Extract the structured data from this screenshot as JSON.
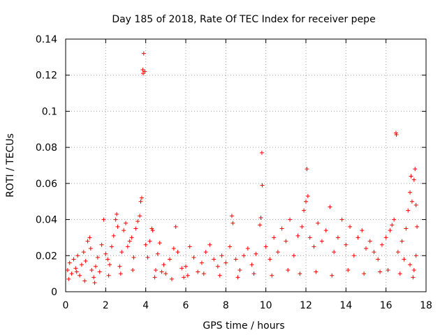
{
  "chart_data": {
    "type": "scatter",
    "title": "Day 185 of 2018, Rate Of TEC Index for receiver pepe",
    "xlabel": "GPS time / hours",
    "ylabel": "ROTI / TECUs",
    "xlim": [
      0,
      18
    ],
    "ylim": [
      0,
      0.14
    ],
    "xticks": [
      "0",
      "2",
      "4",
      "6",
      "8",
      "10",
      "12",
      "14",
      "16",
      "18"
    ],
    "yticks": [
      "0",
      "0.02",
      "0.04",
      "0.06",
      "0.08",
      "0.1",
      "0.12",
      "0.14"
    ],
    "grid": true,
    "marker": "+",
    "color": "#ff0000",
    "series": [
      {
        "name": "ROTI",
        "points": [
          [
            0.1,
            0.012
          ],
          [
            0.2,
            0.016
          ],
          [
            0.3,
            0.01
          ],
          [
            0.4,
            0.018
          ],
          [
            0.5,
            0.013
          ],
          [
            0.6,
            0.02
          ],
          [
            0.7,
            0.009
          ],
          [
            0.8,
            0.015
          ],
          [
            0.9,
            0.022
          ],
          [
            1.0,
            0.017
          ],
          [
            1.1,
            0.028
          ],
          [
            1.2,
            0.03
          ],
          [
            1.25,
            0.024
          ],
          [
            1.3,
            0.012
          ],
          [
            1.4,
            0.008
          ],
          [
            1.5,
            0.014
          ],
          [
            1.6,
            0.019
          ],
          [
            1.7,
            0.011
          ],
          [
            1.8,
            0.026
          ],
          [
            1.9,
            0.04
          ],
          [
            2.0,
            0.021
          ],
          [
            2.1,
            0.018
          ],
          [
            2.2,
            0.015
          ],
          [
            2.3,
            0.025
          ],
          [
            2.4,
            0.031
          ],
          [
            2.5,
            0.04
          ],
          [
            2.55,
            0.043
          ],
          [
            2.6,
            0.036
          ],
          [
            2.7,
            0.014
          ],
          [
            2.8,
            0.022
          ],
          [
            2.9,
            0.034
          ],
          [
            3.0,
            0.038
          ],
          [
            3.1,
            0.025
          ],
          [
            3.2,
            0.028
          ],
          [
            3.3,
            0.03
          ],
          [
            3.4,
            0.019
          ],
          [
            3.5,
            0.035
          ],
          [
            3.6,
            0.039
          ],
          [
            3.7,
            0.042
          ],
          [
            3.75,
            0.05
          ],
          [
            3.8,
            0.052
          ],
          [
            3.85,
            0.123
          ],
          [
            3.87,
            0.121
          ],
          [
            3.9,
            0.132
          ],
          [
            3.95,
            0.122
          ],
          [
            4.0,
            0.026
          ],
          [
            4.1,
            0.019
          ],
          [
            4.2,
            0.028
          ],
          [
            4.3,
            0.035
          ],
          [
            4.35,
            0.034
          ],
          [
            4.5,
            0.012
          ],
          [
            4.6,
            0.021
          ],
          [
            4.7,
            0.027
          ],
          [
            4.8,
            0.011
          ],
          [
            4.9,
            0.015
          ],
          [
            5.0,
            0.01
          ],
          [
            5.2,
            0.018
          ],
          [
            5.4,
            0.024
          ],
          [
            5.5,
            0.036
          ],
          [
            5.6,
            0.022
          ],
          [
            5.8,
            0.013
          ],
          [
            5.9,
            0.008
          ],
          [
            6.0,
            0.014
          ],
          [
            6.2,
            0.025
          ],
          [
            6.4,
            0.019
          ],
          [
            6.6,
            0.011
          ],
          [
            6.8,
            0.016
          ],
          [
            7.0,
            0.022
          ],
          [
            7.2,
            0.026
          ],
          [
            7.4,
            0.018
          ],
          [
            7.6,
            0.014
          ],
          [
            7.8,
            0.02
          ],
          [
            8.0,
            0.016
          ],
          [
            8.2,
            0.025
          ],
          [
            8.3,
            0.042
          ],
          [
            8.35,
            0.038
          ],
          [
            8.5,
            0.018
          ],
          [
            8.7,
            0.012
          ],
          [
            8.9,
            0.02
          ],
          [
            9.1,
            0.024
          ],
          [
            9.3,
            0.015
          ],
          [
            9.5,
            0.021
          ],
          [
            9.7,
            0.037
          ],
          [
            9.75,
            0.041
          ],
          [
            9.8,
            0.077
          ],
          [
            9.82,
            0.059
          ],
          [
            10.0,
            0.025
          ],
          [
            10.2,
            0.018
          ],
          [
            10.4,
            0.03
          ],
          [
            10.6,
            0.022
          ],
          [
            10.8,
            0.035
          ],
          [
            11.0,
            0.028
          ],
          [
            11.2,
            0.04
          ],
          [
            11.4,
            0.02
          ],
          [
            11.6,
            0.031
          ],
          [
            11.8,
            0.036
          ],
          [
            11.9,
            0.045
          ],
          [
            12.0,
            0.05
          ],
          [
            12.05,
            0.068
          ],
          [
            12.1,
            0.053
          ],
          [
            12.2,
            0.03
          ],
          [
            12.4,
            0.025
          ],
          [
            12.6,
            0.038
          ],
          [
            12.8,
            0.028
          ],
          [
            13.0,
            0.034
          ],
          [
            13.2,
            0.047
          ],
          [
            13.4,
            0.022
          ],
          [
            13.6,
            0.03
          ],
          [
            13.8,
            0.04
          ],
          [
            14.0,
            0.026
          ],
          [
            14.2,
            0.036
          ],
          [
            14.4,
            0.02
          ],
          [
            14.6,
            0.03
          ],
          [
            14.8,
            0.034
          ],
          [
            15.0,
            0.024
          ],
          [
            15.2,
            0.028
          ],
          [
            15.4,
            0.022
          ],
          [
            15.6,
            0.018
          ],
          [
            15.8,
            0.026
          ],
          [
            16.0,
            0.03
          ],
          [
            16.2,
            0.034
          ],
          [
            16.3,
            0.037
          ],
          [
            16.4,
            0.04
          ],
          [
            16.5,
            0.088
          ],
          [
            16.52,
            0.087
          ],
          [
            16.6,
            0.022
          ],
          [
            16.8,
            0.028
          ],
          [
            17.0,
            0.035
          ],
          [
            17.1,
            0.045
          ],
          [
            17.2,
            0.055
          ],
          [
            17.25,
            0.064
          ],
          [
            17.3,
            0.05
          ],
          [
            17.4,
            0.062
          ],
          [
            17.45,
            0.068
          ],
          [
            17.5,
            0.048
          ],
          [
            17.55,
            0.036
          ],
          [
            17.5,
            0.02
          ],
          [
            17.4,
            0.012
          ],
          [
            17.2,
            0.015
          ],
          [
            16.9,
            0.018
          ],
          [
            0.15,
            0.007
          ],
          [
            0.55,
            0.011
          ],
          [
            0.95,
            0.006
          ],
          [
            1.45,
            0.005
          ],
          [
            2.15,
            0.009
          ],
          [
            2.75,
            0.01
          ],
          [
            3.35,
            0.012
          ],
          [
            4.45,
            0.008
          ],
          [
            5.3,
            0.007
          ],
          [
            6.1,
            0.009
          ],
          [
            6.9,
            0.01
          ],
          [
            7.7,
            0.009
          ],
          [
            8.6,
            0.008
          ],
          [
            9.4,
            0.01
          ],
          [
            10.3,
            0.009
          ],
          [
            11.1,
            0.012
          ],
          [
            11.7,
            0.01
          ],
          [
            12.5,
            0.011
          ],
          [
            13.3,
            0.009
          ],
          [
            14.1,
            0.012
          ],
          [
            14.9,
            0.01
          ],
          [
            15.7,
            0.011
          ],
          [
            16.1,
            0.012
          ],
          [
            16.7,
            0.01
          ],
          [
            17.35,
            0.008
          ]
        ]
      }
    ]
  }
}
